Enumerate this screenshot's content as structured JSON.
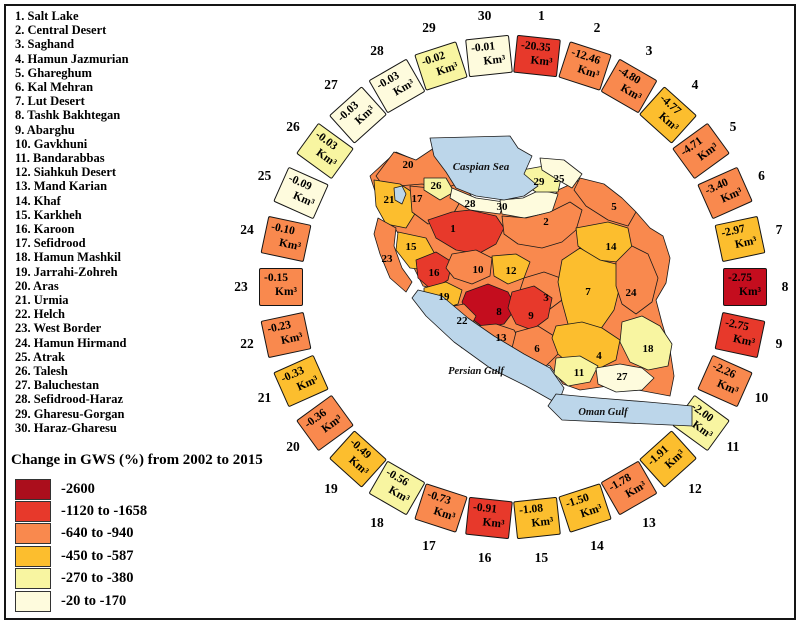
{
  "basins": [
    {
      "n": 1,
      "name": "Salt Lake"
    },
    {
      "n": 2,
      "name": "Central Desert"
    },
    {
      "n": 3,
      "name": "Saghand"
    },
    {
      "n": 4,
      "name": "Hamun Jazmurian"
    },
    {
      "n": 5,
      "name": "Ghareghum"
    },
    {
      "n": 6,
      "name": "Kal Mehran"
    },
    {
      "n": 7,
      "name": "Lut Desert"
    },
    {
      "n": 8,
      "name": "Tashk Bakhtegan"
    },
    {
      "n": 9,
      "name": "Abarghu"
    },
    {
      "n": 10,
      "name": "Gavkhuni"
    },
    {
      "n": 11,
      "name": "Bandarabbas"
    },
    {
      "n": 12,
      "name": "Siahkuh Desert"
    },
    {
      "n": 13,
      "name": "Mand Karian"
    },
    {
      "n": 14,
      "name": "Khaf"
    },
    {
      "n": 15,
      "name": "Karkheh"
    },
    {
      "n": 16,
      "name": "Karoon"
    },
    {
      "n": 17,
      "name": "Sefidrood"
    },
    {
      "n": 18,
      "name": "Hamun Mashkil"
    },
    {
      "n": 19,
      "name": "Jarrahi-Zohreh"
    },
    {
      "n": 20,
      "name": "Aras"
    },
    {
      "n": 21,
      "name": "Urmia"
    },
    {
      "n": 22,
      "name": "Helch"
    },
    {
      "n": 23,
      "name": "West Border"
    },
    {
      "n": 24,
      "name": "Hamun Hirmand"
    },
    {
      "n": 25,
      "name": "Atrak"
    },
    {
      "n": 26,
      "name": "Talesh"
    },
    {
      "n": 27,
      "name": "Baluchestan"
    },
    {
      "n": 28,
      "name": "Sefidrood-Haraz"
    },
    {
      "n": 29,
      "name": "Gharesu-Gorgan"
    },
    {
      "n": 30,
      "name": "Haraz-Gharesu"
    }
  ],
  "legend": {
    "title": "Change in GWS (%) from 2002 to 2015",
    "classes": [
      {
        "key": "darkred",
        "label": "-2600"
      },
      {
        "key": "red",
        "label": "-1120 to -1658"
      },
      {
        "key": "orange",
        "label": "-640 to -940"
      },
      {
        "key": "amber",
        "label": "-450 to -587"
      },
      {
        "key": "lightyellow",
        "label": "-270 to -380"
      },
      {
        "key": "cream",
        "label": "-20 to -170"
      }
    ],
    "class_colors": {
      "darkred": "#AB0E1C",
      "crimson": "#C40D1E",
      "red": "#E7392B",
      "orange": "#F9894E",
      "amber": "#FCBE2E",
      "lightyellow": "#F8F5A1",
      "cream": "#FEFBDD"
    }
  },
  "ring": {
    "unit": "Km³",
    "items": [
      {
        "n": 1,
        "value": "-20.35",
        "class": "red"
      },
      {
        "n": 2,
        "value": "-12.46",
        "class": "orange"
      },
      {
        "n": 3,
        "value": "-4.80",
        "class": "orange"
      },
      {
        "n": 4,
        "value": "-4.77",
        "class": "amber"
      },
      {
        "n": 5,
        "value": "-4.71",
        "class": "orange"
      },
      {
        "n": 6,
        "value": "-3.40",
        "class": "orange"
      },
      {
        "n": 7,
        "value": "-2.97",
        "class": "amber"
      },
      {
        "n": 8,
        "value": "-2.75",
        "class": "crimson"
      },
      {
        "n": 9,
        "value": "-2.75",
        "class": "red"
      },
      {
        "n": 10,
        "value": "-2.26",
        "class": "orange"
      },
      {
        "n": 11,
        "value": "-2.00",
        "class": "lightyellow"
      },
      {
        "n": 12,
        "value": "-1.91",
        "class": "amber"
      },
      {
        "n": 13,
        "value": "-1.78",
        "class": "orange"
      },
      {
        "n": 14,
        "value": "-1.50",
        "class": "amber"
      },
      {
        "n": 15,
        "value": "-1.08",
        "class": "amber"
      },
      {
        "n": 16,
        "value": "-0.91",
        "class": "red"
      },
      {
        "n": 17,
        "value": "-0.73",
        "class": "orange"
      },
      {
        "n": 18,
        "value": "-0.56",
        "class": "lightyellow"
      },
      {
        "n": 19,
        "value": "-0.49",
        "class": "amber"
      },
      {
        "n": 20,
        "value": "-0.36",
        "class": "orange"
      },
      {
        "n": 21,
        "value": "-0.33",
        "class": "amber"
      },
      {
        "n": 22,
        "value": "-0.23",
        "class": "orange"
      },
      {
        "n": 23,
        "value": "-0.15",
        "class": "orange"
      },
      {
        "n": 24,
        "value": "-0.10",
        "class": "orange"
      },
      {
        "n": 25,
        "value": "-0.09",
        "class": "cream"
      },
      {
        "n": 26,
        "value": "-0.03",
        "class": "lightyellow"
      },
      {
        "n": 27,
        "value": "-0.03",
        "class": "cream"
      },
      {
        "n": 28,
        "value": "-0.03",
        "class": "cream"
      },
      {
        "n": 29,
        "value": "-0.02",
        "class": "lightyellow"
      },
      {
        "n": 30,
        "value": "-0.01",
        "class": "cream"
      }
    ]
  },
  "map": {
    "sea_color": "#BCD6EA",
    "sea_labels": {
      "caspian": "Caspian Sea",
      "persian": "Persian Gulf",
      "oman": "Oman Gulf"
    },
    "regions": [
      {
        "n": 1,
        "class": "red"
      },
      {
        "n": 2,
        "class": "orange"
      },
      {
        "n": 3,
        "class": "orange"
      },
      {
        "n": 4,
        "class": "amber"
      },
      {
        "n": 5,
        "class": "orange"
      },
      {
        "n": 6,
        "class": "orange"
      },
      {
        "n": 7,
        "class": "amber"
      },
      {
        "n": 8,
        "class": "crimson"
      },
      {
        "n": 9,
        "class": "red"
      },
      {
        "n": 10,
        "class": "orange"
      },
      {
        "n": 11,
        "class": "lightyellow"
      },
      {
        "n": 12,
        "class": "amber"
      },
      {
        "n": 13,
        "class": "orange"
      },
      {
        "n": 14,
        "class": "amber"
      },
      {
        "n": 15,
        "class": "amber"
      },
      {
        "n": 16,
        "class": "red"
      },
      {
        "n": 17,
        "class": "orange"
      },
      {
        "n": 18,
        "class": "lightyellow"
      },
      {
        "n": 19,
        "class": "amber"
      },
      {
        "n": 20,
        "class": "orange"
      },
      {
        "n": 21,
        "class": "amber"
      },
      {
        "n": 22,
        "class": "orange"
      },
      {
        "n": 23,
        "class": "orange"
      },
      {
        "n": 24,
        "class": "orange"
      },
      {
        "n": 25,
        "class": "cream"
      },
      {
        "n": 26,
        "class": "lightyellow"
      },
      {
        "n": 27,
        "class": "cream"
      },
      {
        "n": 28,
        "class": "cream"
      },
      {
        "n": 29,
        "class": "lightyellow"
      },
      {
        "n": 30,
        "class": "cream"
      }
    ]
  },
  "chart_data": {
    "type": "heatmap",
    "subtype": "choropleth-map-with-radial-value-ring",
    "title": "Change in GWS (%) from 2002 to 2015",
    "unit": "Km³",
    "categories": [
      "Salt Lake",
      "Central Desert",
      "Saghand",
      "Hamun Jazmurian",
      "Ghareghum",
      "Kal Mehran",
      "Lut Desert",
      "Tashk Bakhtegan",
      "Abarghu",
      "Gavkhuni",
      "Bandarabbas",
      "Siahkuh Desert",
      "Mand Karian",
      "Khaf",
      "Karkheh",
      "Karoon",
      "Sefidrood",
      "Hamun Mashkil",
      "Jarrahi-Zohreh",
      "Aras",
      "Urmia",
      "Helch",
      "West Border",
      "Hamun Hirmand",
      "Atrak",
      "Talesh",
      "Baluchestan",
      "Sefidrood-Haraz",
      "Gharesu-Gorgan",
      "Haraz-Gharesu"
    ],
    "values": [
      -20.35,
      -12.46,
      -4.8,
      -4.77,
      -4.71,
      -3.4,
      -2.97,
      -2.75,
      -2.75,
      -2.26,
      -2.0,
      -1.91,
      -1.78,
      -1.5,
      -1.08,
      -0.91,
      -0.73,
      -0.56,
      -0.49,
      -0.36,
      -0.33,
      -0.23,
      -0.15,
      -0.1,
      -0.09,
      -0.03,
      -0.03,
      -0.03,
      -0.02,
      -0.01
    ],
    "legend_classes": [
      "-2600",
      "-1120 to -1658",
      "-640 to -940",
      "-450 to -587",
      "-270 to -380",
      "-20 to -170"
    ],
    "legend_position": "bottom-left",
    "map_region": "Iran"
  }
}
